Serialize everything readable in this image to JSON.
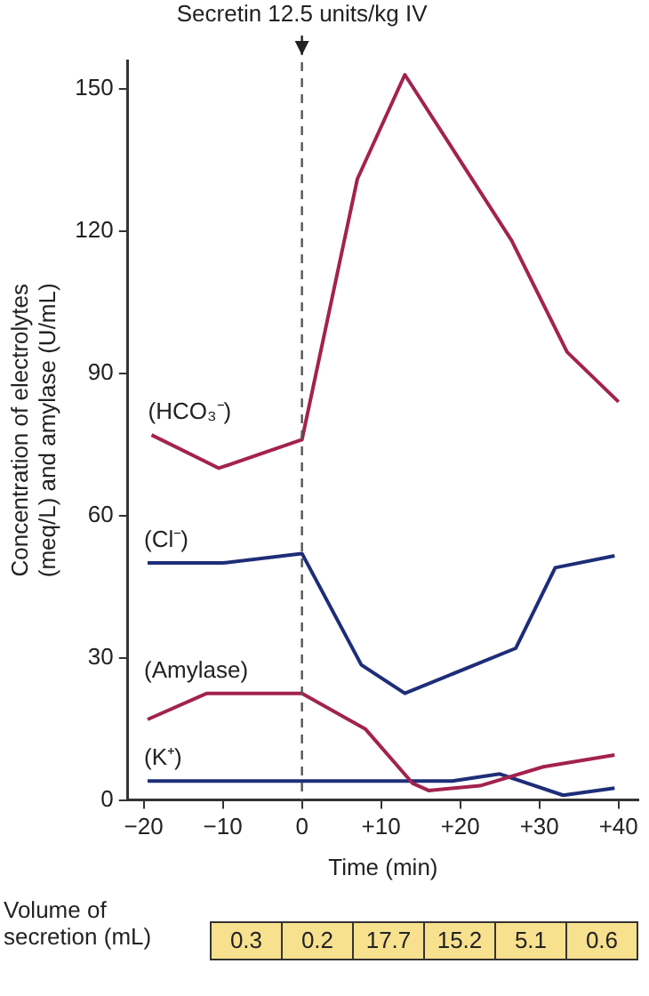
{
  "chart_data": [
    {
      "type": "line",
      "xlabel": "Time (min)",
      "ylabel": "Concentration of electrolytes\n(meq/L) and amylase (U/mL)",
      "xlim": [
        -22,
        42.5
      ],
      "ylim": [
        0,
        156
      ],
      "xticks": [
        {
          "value": -20,
          "label": "−20"
        },
        {
          "value": -10,
          "label": "−10"
        },
        0,
        {
          "value": 10,
          "label": "+10"
        },
        {
          "value": 20,
          "label": "+20"
        },
        {
          "value": 30,
          "label": "+30"
        },
        {
          "value": 40,
          "label": "+40"
        }
      ],
      "yticks": [
        0,
        30,
        60,
        90,
        120,
        150
      ],
      "grid": false,
      "legend": false,
      "marker": "none",
      "line_style": "solid",
      "ref_lines": [
        {
          "axis": "x",
          "value": 0,
          "label": "Secretin 12.5 units/kg IV",
          "line_style": "dashed",
          "color": "#555555"
        }
      ],
      "series": [
        {
          "name": "(HCO₃⁻)",
          "color": "#a3224f",
          "x": [
            -19,
            -10.5,
            0,
            7,
            13,
            26.5,
            33.5,
            40
          ],
          "values": [
            77,
            70,
            76,
            131,
            153,
            118,
            94.5,
            84
          ]
        },
        {
          "name": "(Cl⁻)",
          "color": "#1e2d78",
          "x": [
            -19.5,
            -10,
            0,
            7.5,
            13,
            27,
            32,
            39.5
          ],
          "values": [
            50,
            50,
            52,
            28.5,
            22.5,
            32,
            49,
            51.5
          ]
        },
        {
          "name": "(Amylase)",
          "color": "#a3224f",
          "x": [
            -19.5,
            -12,
            0,
            8,
            14,
            16,
            22.5,
            30.5,
            39.5
          ],
          "values": [
            17,
            22.5,
            22.5,
            15,
            3.5,
            2,
            3,
            7,
            9.5
          ]
        },
        {
          "name": "(K⁺)",
          "color": "#1e2d78",
          "x": [
            -19.5,
            19,
            25,
            33,
            39.5
          ],
          "values": [
            4,
            4,
            5.5,
            1,
            2.5
          ]
        }
      ]
    },
    {
      "type": "other",
      "title": "Volume of secretion (mL)",
      "values": [
        0.3,
        0.2,
        17.7,
        15.2,
        5.1,
        0.6
      ],
      "color": "#f7e08e",
      "data_labels": true
    }
  ]
}
